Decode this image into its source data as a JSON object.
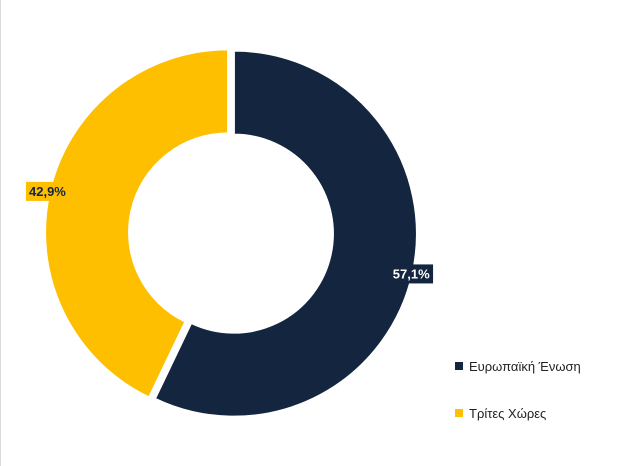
{
  "chart_data": {
    "type": "pie",
    "title": "",
    "categories": [
      "Ευρωπαϊκή Ένωση",
      "Τρίτες Χώρες"
    ],
    "values": [
      57.1,
      42.9
    ],
    "data_labels": [
      "57,1%",
      "42,9%"
    ],
    "colors": [
      "#14253f",
      "#fdbf00"
    ],
    "label_text_colors": [
      "#ffffff",
      "#14253f"
    ],
    "donut": true,
    "legend_placement": "bottom-right"
  }
}
